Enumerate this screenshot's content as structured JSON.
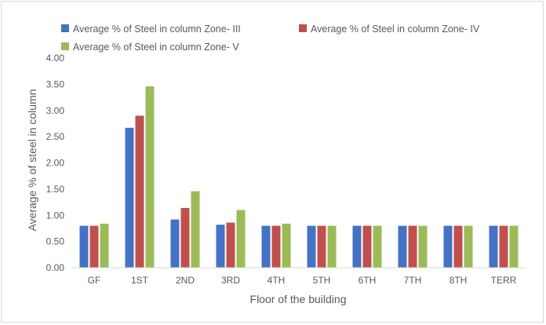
{
  "chart_data": {
    "type": "bar",
    "title": "",
    "xlabel": "Floor of the building",
    "ylabel": "Average % of steel in column",
    "categories": [
      "GF",
      "1ST",
      "2ND",
      "3RD",
      "4TH",
      "5TH",
      "6TH",
      "7TH",
      "8TH",
      "TERR"
    ],
    "ylim": [
      0,
      4
    ],
    "yticks": [
      "0.00",
      "0.50",
      "1.00",
      "1.50",
      "2.00",
      "2.50",
      "3.00",
      "3.50",
      "4.00"
    ],
    "grid": false,
    "legend_position": "top",
    "series": [
      {
        "name": "Average % of Steel in column Zone- III",
        "color": "#4472c4",
        "values": [
          0.8,
          2.67,
          0.92,
          0.82,
          0.8,
          0.8,
          0.8,
          0.8,
          0.8,
          0.8
        ]
      },
      {
        "name": "Average % of Steel in column Zone- IV",
        "color": "#c0504d",
        "values": [
          0.8,
          2.9,
          1.14,
          0.86,
          0.8,
          0.8,
          0.8,
          0.8,
          0.8,
          0.8
        ]
      },
      {
        "name": "Average % of Steel in column Zone- V",
        "color": "#9bbb59",
        "values": [
          0.84,
          3.46,
          1.46,
          1.1,
          0.84,
          0.8,
          0.8,
          0.8,
          0.8,
          0.8
        ]
      }
    ]
  }
}
